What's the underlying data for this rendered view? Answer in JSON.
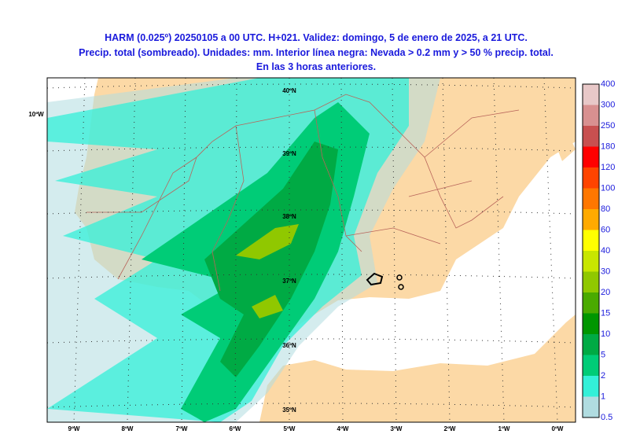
{
  "header": {
    "title_lines": [
      "HARM (0.025º) 20250105 a 00 UTC. H+021. Validez: domingo, 5 de enero de 2025, a 21 UTC.",
      "Precip. total (sombreado). Unidades: mm. Interior línea negra: Nevada > 0.2 mm y > 50 % precip. total.",
      "En las 3 horas anteriores."
    ]
  },
  "map": {
    "lat_labels": [
      "40ºN",
      "39ºN",
      "38ºN",
      "37ºN",
      "36ºN",
      "35ºN"
    ],
    "lon_labels": [
      "9ºW",
      "8ºW",
      "7ºW",
      "6ºW",
      "5ºW",
      "4ºW",
      "3ºW",
      "2ºW",
      "1ºW",
      "0ºW"
    ],
    "left_label": "10ºW"
  },
  "colorbar": {
    "labels": [
      "400",
      "300",
      "250",
      "180",
      "120",
      "100",
      "80",
      "60",
      "40",
      "30",
      "20",
      "15",
      "10",
      "5",
      "2",
      "1",
      "0.5"
    ],
    "colors": [
      "#e8c8c8",
      "#d89090",
      "#c85050",
      "#ff0000",
      "#ff4400",
      "#ff7700",
      "#ffaa00",
      "#ffff00",
      "#c8e600",
      "#90c800",
      "#4aaa00",
      "#009600",
      "#00aa44",
      "#00cc77",
      "#33f0d8",
      "#b0dce0"
    ]
  }
}
